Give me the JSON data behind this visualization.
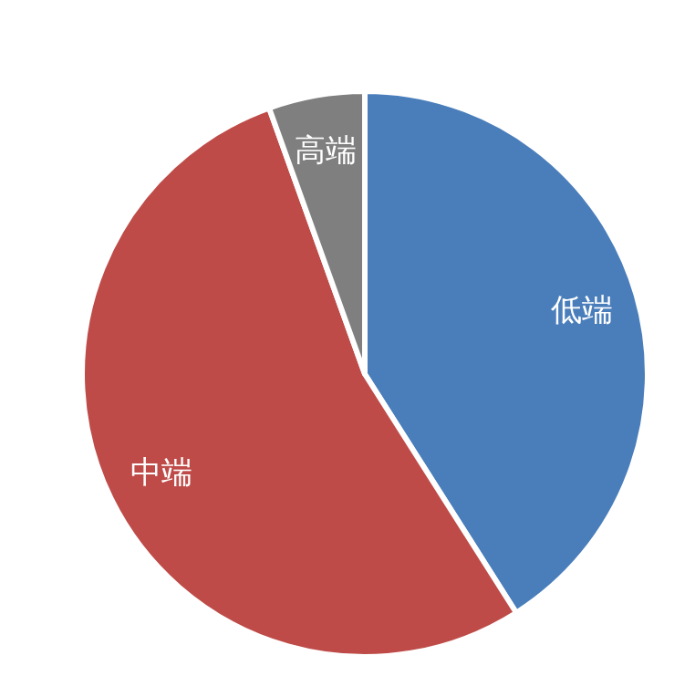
{
  "chart_data": {
    "type": "pie",
    "categories": [
      "低端",
      "中端",
      "高端"
    ],
    "values": [
      41,
      53.5,
      5.5
    ],
    "colors": [
      "#4a7ebb",
      "#be4b48",
      "#7f7f7f"
    ]
  }
}
